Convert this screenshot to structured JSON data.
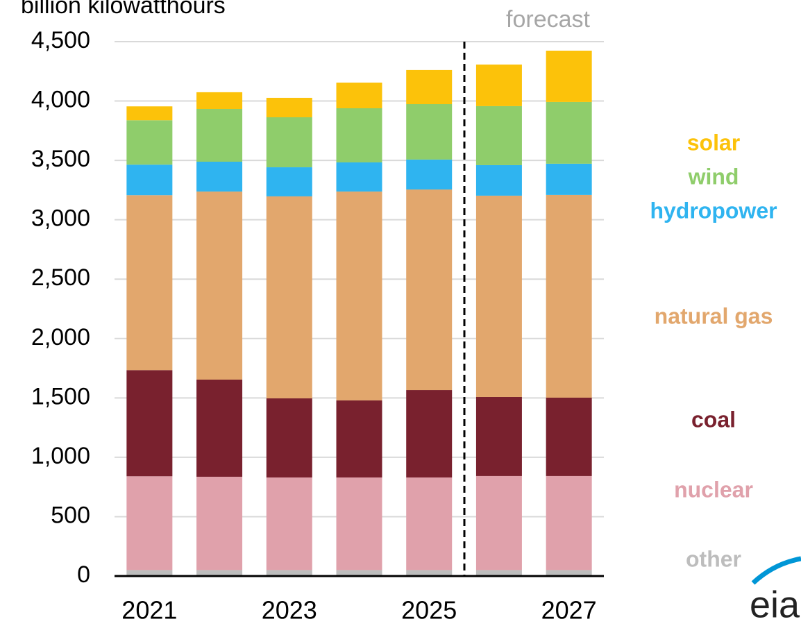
{
  "chart_data": {
    "type": "stacked_bar",
    "y_axis_label": "billion kilowatthours",
    "annotation": "forecast",
    "logo": "eia",
    "categories": [
      "2021",
      null,
      "2023",
      null,
      "2025",
      null,
      "2027"
    ],
    "series": [
      {
        "name": "other",
        "color": "#bdbdbd",
        "values": [
          50,
          50,
          50,
          50,
          50,
          50,
          50
        ]
      },
      {
        "name": "nuclear",
        "color": "#e0a1ab",
        "values": [
          790,
          786,
          780,
          780,
          780,
          792,
          792
        ]
      },
      {
        "name": "coal",
        "color": "#79212e",
        "values": [
          894,
          818,
          666,
          649,
          736,
          666,
          660
        ]
      },
      {
        "name": "natural gas",
        "color": "#e2a76d",
        "values": [
          1473,
          1584,
          1701,
          1759,
          1689,
          1695,
          1707
        ]
      },
      {
        "name": "hydropower",
        "color": "#2fb4f0",
        "values": [
          257,
          251,
          245,
          245,
          252,
          257,
          263
        ]
      },
      {
        "name": "wind",
        "color": "#8fcd6b",
        "values": [
          374,
          444,
          421,
          456,
          467,
          497,
          520
        ]
      },
      {
        "name": "solar",
        "color": "#fcc20a",
        "values": [
          117,
          141,
          164,
          216,
          287,
          350,
          432
        ]
      }
    ],
    "ylim": [
      0,
      4500
    ],
    "yticks": [
      0,
      500,
      {
        "value": 1000,
        "label": "1,000"
      },
      {
        "value": 1500,
        "label": "1,500"
      },
      {
        "value": 2000,
        "label": "2,000"
      },
      {
        "value": 2500,
        "label": "2,500"
      },
      {
        "value": 3000,
        "label": "3,000"
      },
      {
        "value": 3500,
        "label": "3,500"
      },
      {
        "value": 4000,
        "label": "4,000"
      },
      {
        "value": 4500,
        "label": "4,500"
      }
    ],
    "grid": true
  }
}
